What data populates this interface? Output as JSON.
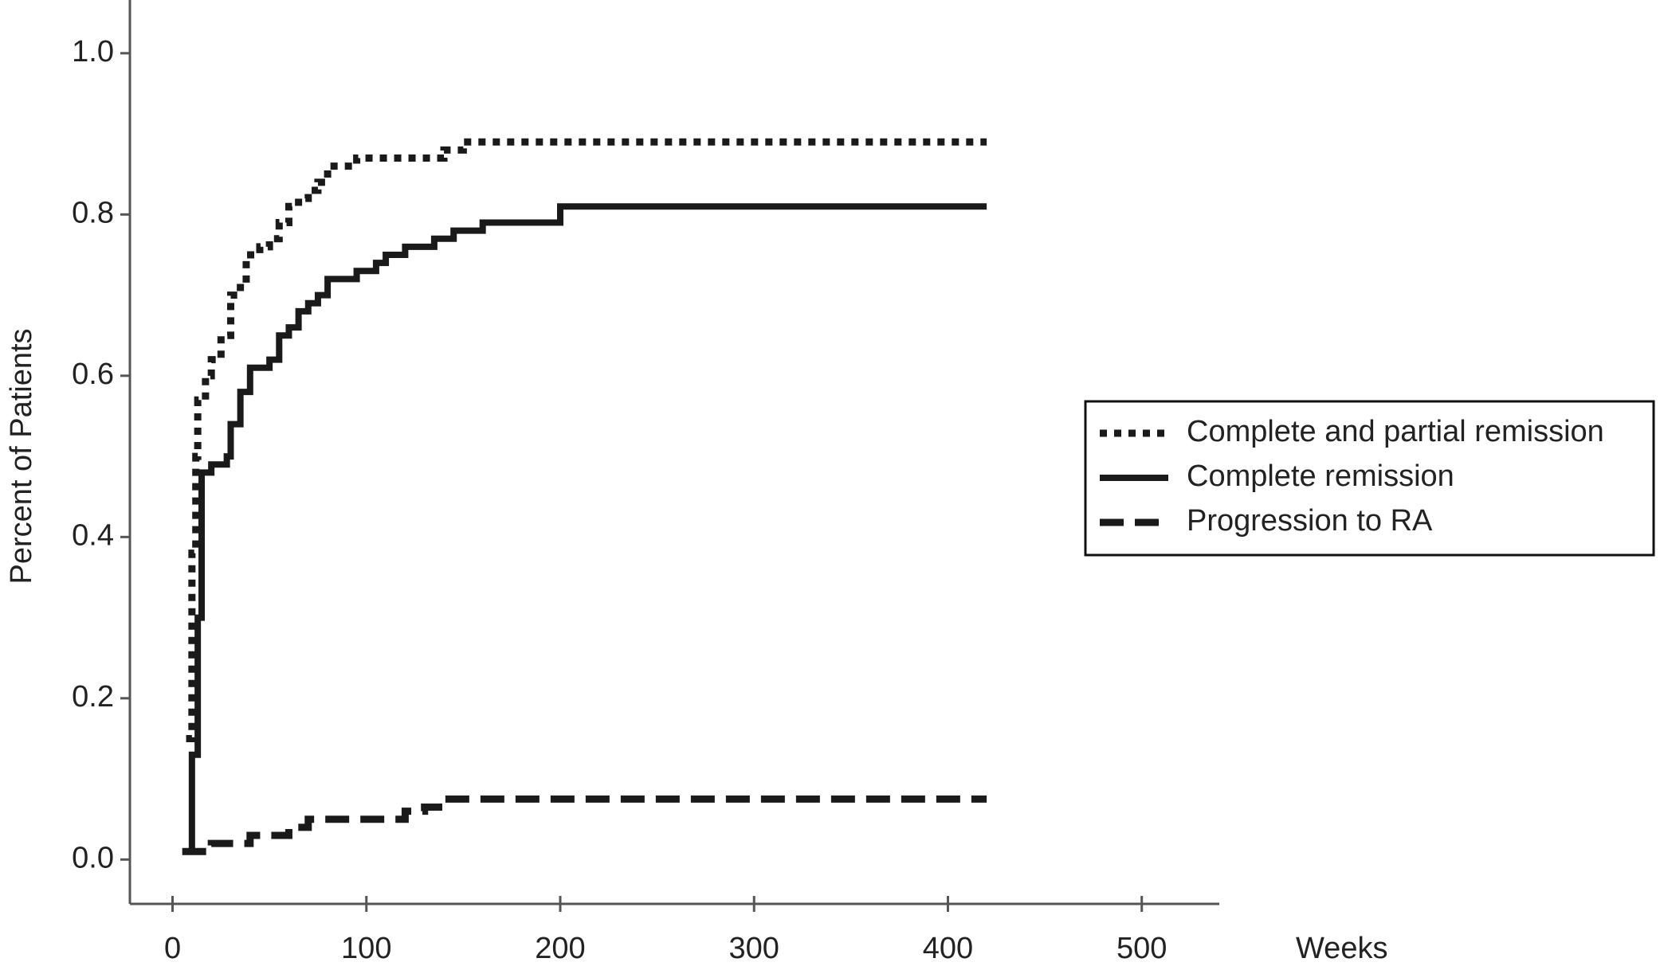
{
  "chart_data": {
    "type": "line",
    "step": true,
    "x_label": "Weeks",
    "y_label": "Percent of Patients",
    "xlim": [
      -22,
      540
    ],
    "ylim": [
      -0.055,
      1.066
    ],
    "xticks": [
      0,
      100,
      200,
      300,
      400,
      500
    ],
    "yticks": [
      {
        "value": 0,
        "label": "0.0"
      },
      {
        "value": 0.2,
        "label": "0.2"
      },
      {
        "value": 0.4,
        "label": "0.4"
      },
      {
        "value": 0.6,
        "label": "0.6"
      },
      {
        "value": 0.8,
        "label": "0.8"
      },
      {
        "value": 1,
        "label": "1.0"
      }
    ],
    "legend": "right",
    "series": [
      {
        "name": "Complete and partial remission",
        "color": "#1a1a1a",
        "style": "dotted",
        "x": [
          7,
          10,
          12,
          13,
          17,
          20,
          25,
          30,
          35,
          38,
          45,
          50,
          55,
          60,
          65,
          70,
          75,
          80,
          95,
          120,
          140,
          150,
          160,
          420
        ],
        "values": [
          0.15,
          0.38,
          0.5,
          0.57,
          0.6,
          0.62,
          0.65,
          0.7,
          0.72,
          0.75,
          0.76,
          0.77,
          0.79,
          0.81,
          0.82,
          0.83,
          0.84,
          0.86,
          0.87,
          0.87,
          0.88,
          0.89,
          0.89,
          0.89
        ]
      },
      {
        "name": "Complete remission",
        "color": "#1a1a1a",
        "style": "solid",
        "x": [
          8,
          10,
          13,
          15,
          20,
          28,
          30,
          35,
          40,
          50,
          55,
          60,
          65,
          70,
          75,
          80,
          95,
          105,
          110,
          120,
          135,
          145,
          160,
          200,
          420
        ],
        "values": [
          0.01,
          0.13,
          0.3,
          0.48,
          0.49,
          0.5,
          0.54,
          0.58,
          0.61,
          0.62,
          0.65,
          0.66,
          0.68,
          0.69,
          0.7,
          0.72,
          0.73,
          0.74,
          0.75,
          0.76,
          0.77,
          0.78,
          0.79,
          0.81,
          0.81
        ]
      },
      {
        "name": "Progression to RA",
        "color": "#1a1a1a",
        "style": "dashed",
        "x": [
          5,
          20,
          40,
          60,
          70,
          120,
          130,
          140,
          420
        ],
        "values": [
          0.01,
          0.02,
          0.03,
          0.04,
          0.05,
          0.06,
          0.065,
          0.075,
          0.075
        ]
      }
    ]
  }
}
